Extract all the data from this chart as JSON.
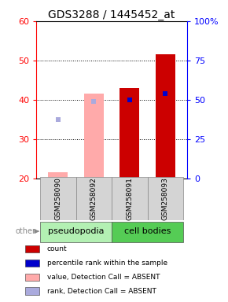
{
  "title": "GDS3288 / 1445452_at",
  "samples": [
    "GSM258090",
    "GSM258092",
    "GSM258091",
    "GSM258093"
  ],
  "groups": [
    "pseudopodia",
    "pseudopodia",
    "cell bodies",
    "cell bodies"
  ],
  "group_colors": {
    "pseudopodia": "#b3f0b3",
    "cell bodies": "#55cc55"
  },
  "ylim_left": [
    20,
    60
  ],
  "ylim_right": [
    0,
    100
  ],
  "yticks_left": [
    20,
    30,
    40,
    50,
    60
  ],
  "yticks_right": [
    0,
    25,
    50,
    75,
    100
  ],
  "yright_labels": [
    "0",
    "25",
    "50",
    "75",
    "100%"
  ],
  "bars": {
    "GSM258090": {
      "type": "absent",
      "count_val": 21.5,
      "rank_val": 35.0
    },
    "GSM258092": {
      "type": "absent",
      "count_val": 41.5,
      "rank_val": 39.5
    },
    "GSM258091": {
      "type": "present",
      "count_val": 43.0,
      "rank_val": 40.0
    },
    "GSM258093": {
      "type": "present",
      "count_val": 51.5,
      "rank_val": 41.5
    }
  },
  "bar_base": 20,
  "count_color_present": "#cc0000",
  "count_color_absent": "#ffaaaa",
  "rank_color_present": "#0000cc",
  "rank_color_absent": "#aaaadd",
  "bar_width": 0.55,
  "legend_items": [
    {
      "label": "count",
      "color": "#cc0000"
    },
    {
      "label": "percentile rank within the sample",
      "color": "#0000cc"
    },
    {
      "label": "value, Detection Call = ABSENT",
      "color": "#ffaaaa"
    },
    {
      "label": "rank, Detection Call = ABSENT",
      "color": "#aaaadd"
    }
  ],
  "tick_fontsize": 8,
  "title_fontsize": 10,
  "sample_fontsize": 6.5,
  "group_fontsize": 8,
  "legend_fontsize": 6.5
}
